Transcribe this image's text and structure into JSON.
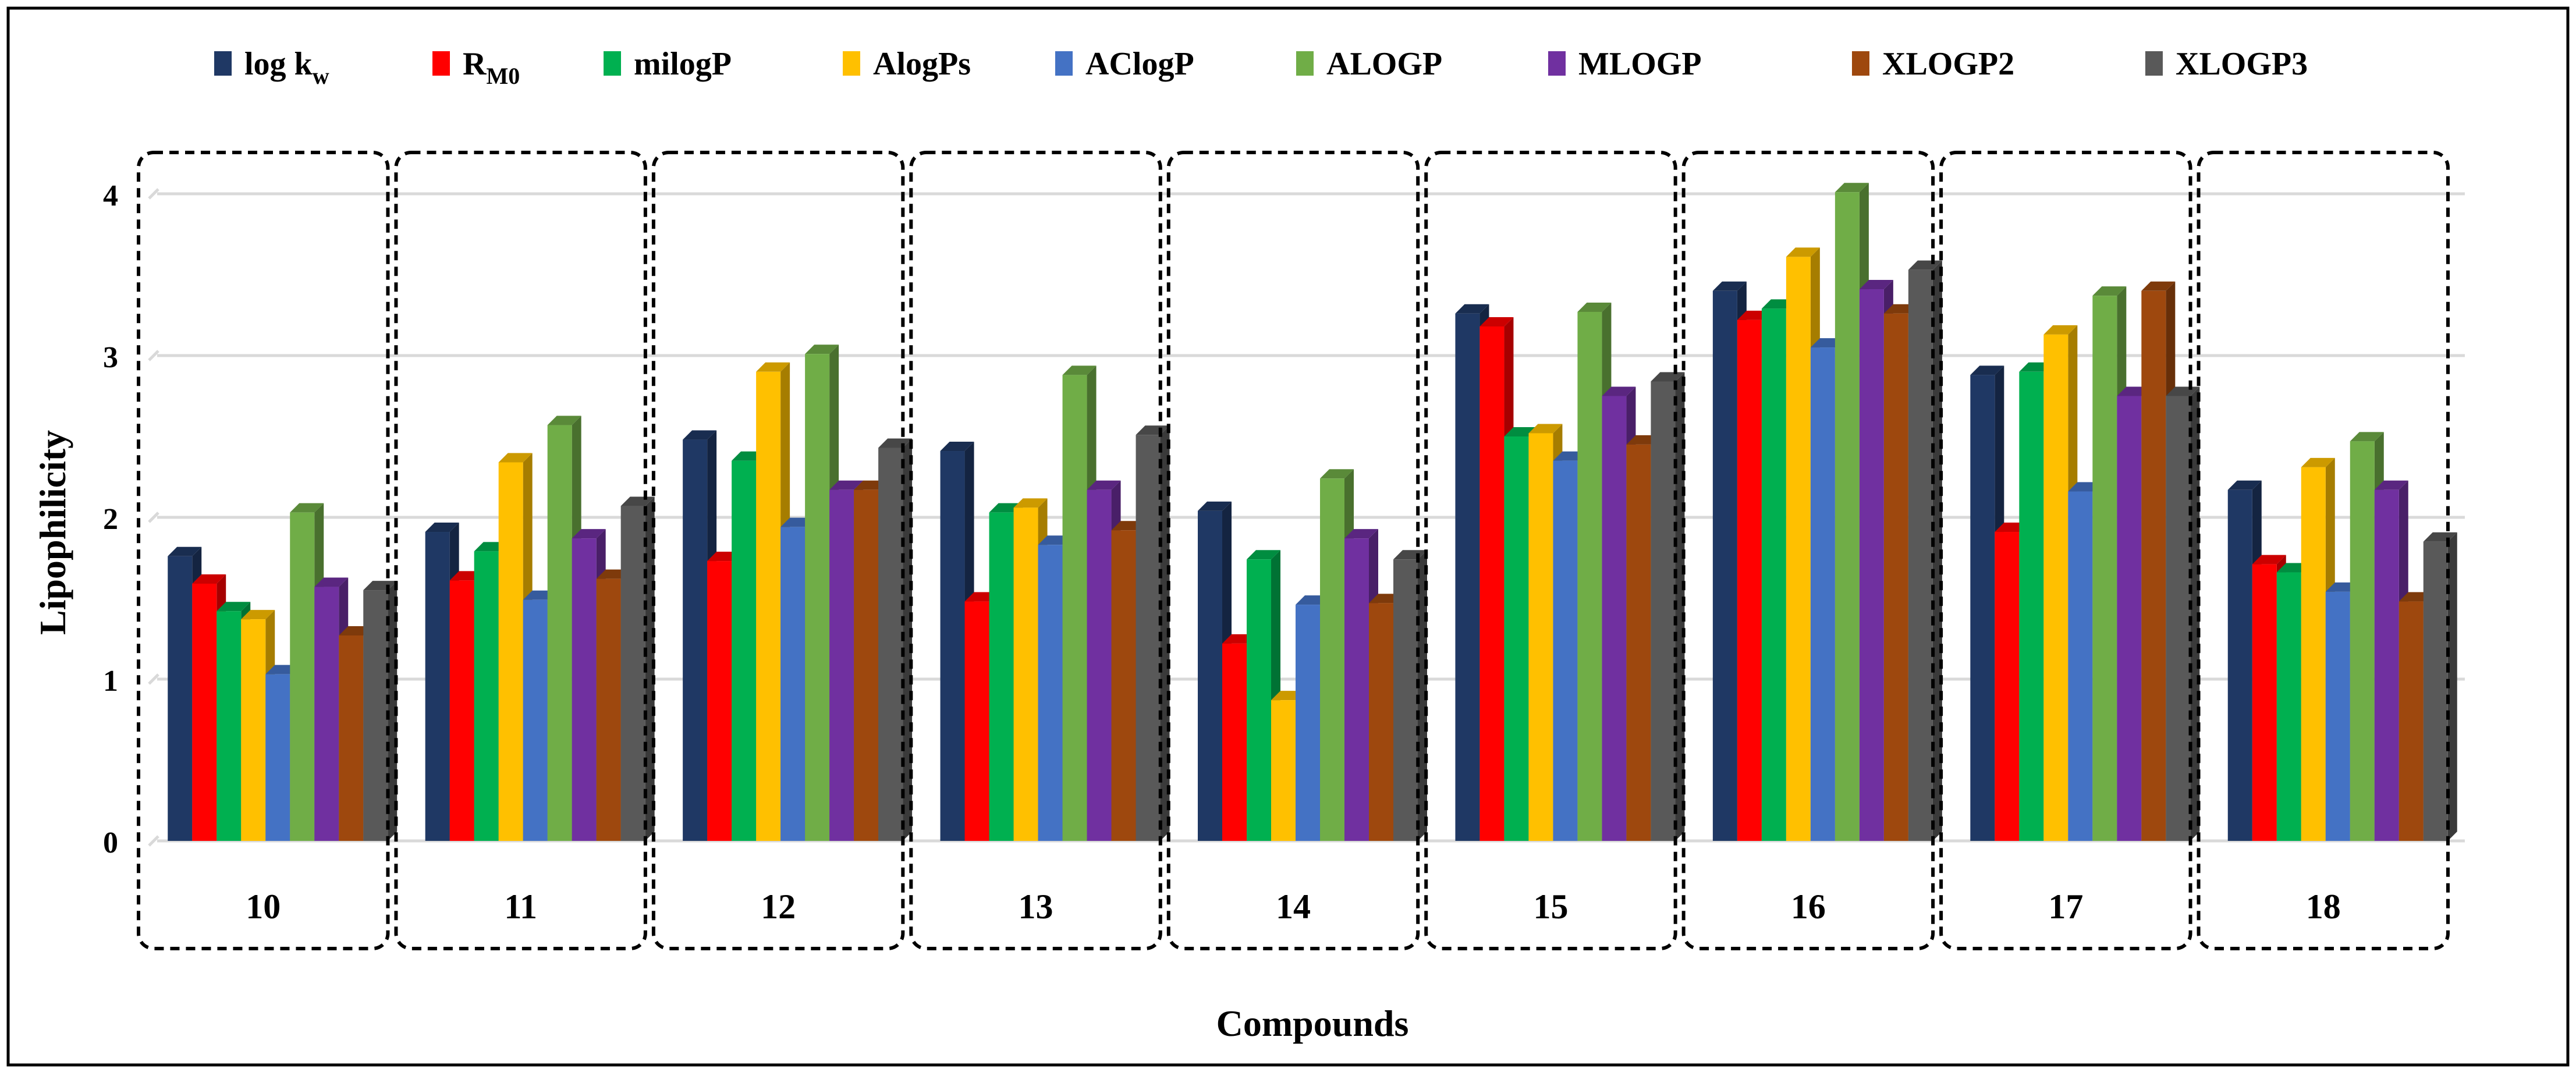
{
  "chart_data": {
    "type": "bar",
    "title": "",
    "xlabel": "Compounds",
    "ylabel": "Lipophilicity",
    "ylim": [
      0,
      4
    ],
    "yticks": [
      0,
      1,
      2,
      3,
      4
    ],
    "grid": true,
    "legend_position": "top",
    "categories": [
      "10",
      "11",
      "12",
      "13",
      "14",
      "15",
      "16",
      "17",
      "18"
    ],
    "series": [
      {
        "name": "log k",
        "subscript": "w",
        "color": "#1F3864",
        "values": [
          1.76,
          1.91,
          2.48,
          2.41,
          2.04,
          3.26,
          3.4,
          2.88,
          2.17
        ]
      },
      {
        "name": "R",
        "subscript": "M0",
        "color": "#FF0000",
        "values": [
          1.59,
          1.61,
          1.73,
          1.48,
          1.22,
          3.18,
          3.22,
          1.91,
          1.71
        ]
      },
      {
        "name": "milogP",
        "subscript": "",
        "color": "#00B050",
        "values": [
          1.42,
          1.79,
          2.35,
          2.03,
          1.74,
          2.5,
          3.29,
          2.9,
          1.66
        ]
      },
      {
        "name": "AlogPs",
        "subscript": "",
        "color": "#FFC000",
        "values": [
          1.37,
          2.34,
          2.9,
          2.06,
          0.87,
          2.52,
          3.61,
          3.13,
          2.31
        ]
      },
      {
        "name": "AClogP",
        "subscript": "",
        "color": "#4472C4",
        "values": [
          1.03,
          1.49,
          1.94,
          1.83,
          1.46,
          2.35,
          3.05,
          2.16,
          1.54
        ]
      },
      {
        "name": "ALOGP",
        "subscript": "",
        "color": "#70AD47",
        "values": [
          2.03,
          2.57,
          3.01,
          2.88,
          2.24,
          3.27,
          4.01,
          3.37,
          2.47
        ]
      },
      {
        "name": "MLOGP",
        "subscript": "",
        "color": "#7030A0",
        "values": [
          1.57,
          1.87,
          2.17,
          2.17,
          1.87,
          2.75,
          3.41,
          2.75,
          2.17
        ]
      },
      {
        "name": "XLOGP2",
        "subscript": "",
        "color": "#9E480E",
        "values": [
          1.27,
          1.62,
          2.17,
          1.92,
          1.47,
          2.45,
          3.26,
          3.4,
          1.48
        ]
      },
      {
        "name": "XLOGP3",
        "subscript": "",
        "color": "#595959",
        "values": [
          1.55,
          2.07,
          2.43,
          2.51,
          1.74,
          2.84,
          3.53,
          2.75,
          1.85
        ]
      }
    ]
  }
}
